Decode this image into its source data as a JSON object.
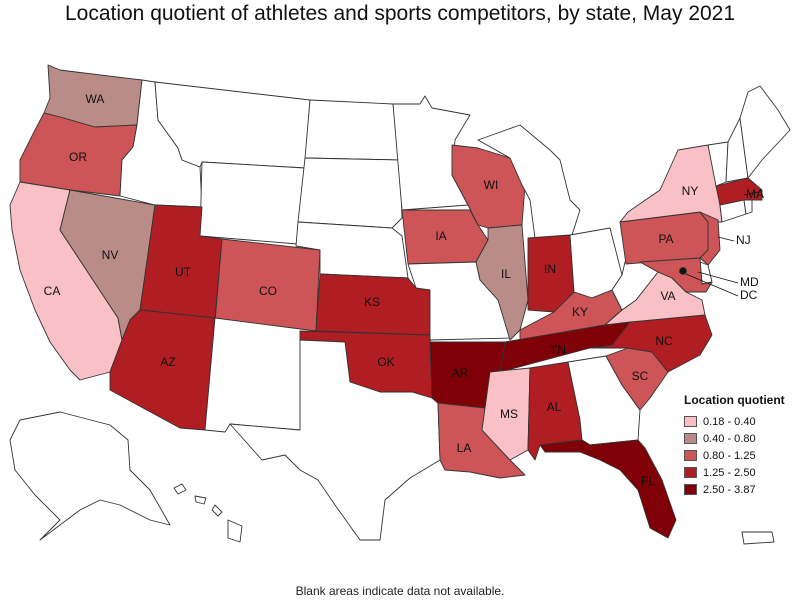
{
  "title": "Location quotient of athletes and sports competitors, by state, May 2021",
  "footnote": "Blank areas indicate data not available.",
  "legend": {
    "title": "Location quotient",
    "classes": [
      {
        "range": "0.18 - 0.40",
        "color": "#f9c0c6"
      },
      {
        "range": "0.40 - 0.80",
        "color": "#b98c88"
      },
      {
        "range": "0.80 - 1.25",
        "color": "#cd5457"
      },
      {
        "range": "1.25 - 2.50",
        "color": "#b01e23"
      },
      {
        "range": "2.50 - 3.87",
        "color": "#7f0007"
      }
    ]
  },
  "no_data_color": "#ffffff",
  "states": [
    {
      "abbr": "WA",
      "class": 1
    },
    {
      "abbr": "OR",
      "class": 2
    },
    {
      "abbr": "CA",
      "class": 0
    },
    {
      "abbr": "NV",
      "class": 1
    },
    {
      "abbr": "UT",
      "class": 3
    },
    {
      "abbr": "AZ",
      "class": 3
    },
    {
      "abbr": "CO",
      "class": 2
    },
    {
      "abbr": "KS",
      "class": 3
    },
    {
      "abbr": "OK",
      "class": 3
    },
    {
      "abbr": "IA",
      "class": 2
    },
    {
      "abbr": "WI",
      "class": 2
    },
    {
      "abbr": "IL",
      "class": 1
    },
    {
      "abbr": "IN",
      "class": 3
    },
    {
      "abbr": "KY",
      "class": 2
    },
    {
      "abbr": "TN",
      "class": 4
    },
    {
      "abbr": "AR",
      "class": 4
    },
    {
      "abbr": "MS",
      "class": 0
    },
    {
      "abbr": "AL",
      "class": 3
    },
    {
      "abbr": "LA",
      "class": 2
    },
    {
      "abbr": "FL",
      "class": 4
    },
    {
      "abbr": "SC",
      "class": 2
    },
    {
      "abbr": "NC",
      "class": 3
    },
    {
      "abbr": "VA",
      "class": 0
    },
    {
      "abbr": "PA",
      "class": 2
    },
    {
      "abbr": "NY",
      "class": 0
    },
    {
      "abbr": "NJ",
      "class": 2
    },
    {
      "abbr": "MD",
      "class": 2
    },
    {
      "abbr": "DC",
      "class": 4
    },
    {
      "abbr": "MA",
      "class": 3
    },
    {
      "abbr": "ID",
      "class": null
    },
    {
      "abbr": "MT",
      "class": null
    },
    {
      "abbr": "WY",
      "class": null
    },
    {
      "abbr": "ND",
      "class": null
    },
    {
      "abbr": "SD",
      "class": null
    },
    {
      "abbr": "NE",
      "class": null
    },
    {
      "abbr": "MN",
      "class": null
    },
    {
      "abbr": "MO",
      "class": null
    },
    {
      "abbr": "NM",
      "class": null
    },
    {
      "abbr": "TX",
      "class": null
    },
    {
      "abbr": "MI",
      "class": null
    },
    {
      "abbr": "OH",
      "class": null
    },
    {
      "abbr": "WV",
      "class": null
    },
    {
      "abbr": "GA",
      "class": null
    },
    {
      "abbr": "ME",
      "class": null
    },
    {
      "abbr": "VT",
      "class": null
    },
    {
      "abbr": "NH",
      "class": null
    },
    {
      "abbr": "CT",
      "class": null
    },
    {
      "abbr": "RI",
      "class": null
    },
    {
      "abbr": "DE",
      "class": null
    },
    {
      "abbr": "AK",
      "class": null
    },
    {
      "abbr": "HI",
      "class": null
    },
    {
      "abbr": "PR",
      "class": null
    }
  ],
  "labels": {
    "WA": "WA",
    "OR": "OR",
    "CA": "CA",
    "NV": "NV",
    "UT": "UT",
    "AZ": "AZ",
    "CO": "CO",
    "KS": "KS",
    "OK": "OK",
    "IA": "IA",
    "WI": "WI",
    "IL": "IL",
    "IN": "IN",
    "KY": "KY",
    "TN": "TN",
    "AR": "AR",
    "MS": "MS",
    "AL": "AL",
    "LA": "LA",
    "FL": "FL",
    "SC": "SC",
    "NC": "NC",
    "VA": "VA",
    "PA": "PA",
    "NY": "NY",
    "NJ": "NJ",
    "MD": "MD",
    "DC": "DC",
    "MA": "MA"
  }
}
